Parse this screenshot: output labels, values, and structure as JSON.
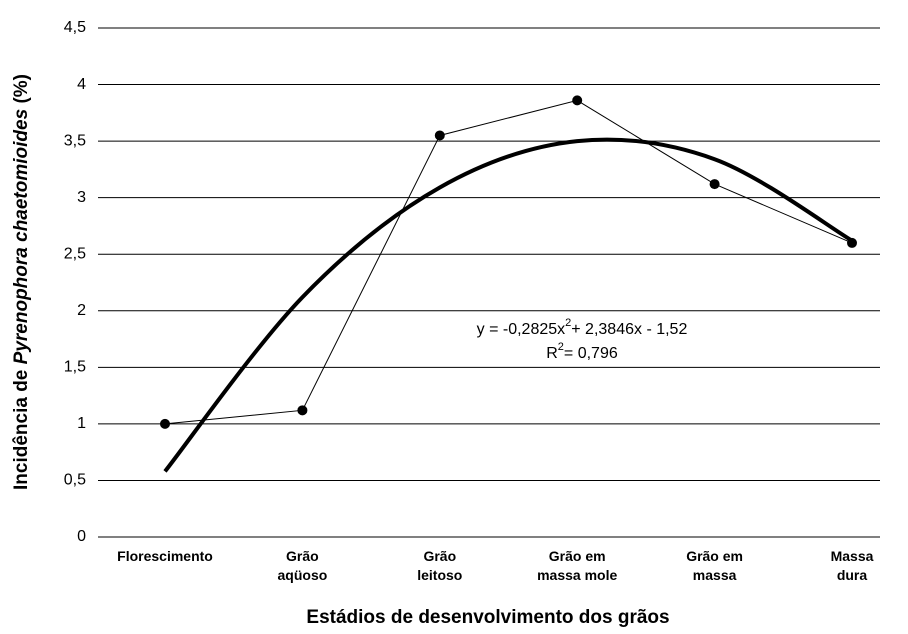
{
  "chart_data": {
    "type": "line",
    "x_label": "Estádios de desenvolvimento dos grãos",
    "y_label": [
      "Incidência de ",
      "Pyrenophora chaetomioides",
      " (%)"
    ],
    "categories": [
      [
        "Florescimento"
      ],
      [
        "Grão",
        "aqüoso"
      ],
      [
        "Grão",
        "leitoso"
      ],
      [
        "Grão em",
        "massa mole"
      ],
      [
        "Grão em",
        "massa"
      ],
      [
        "Massa",
        "dura"
      ]
    ],
    "series": [
      {
        "color": "#000000",
        "values": [
          1.0,
          1.12,
          3.55,
          3.86,
          3.12,
          2.6
        ]
      },
      {
        "color": "#000000",
        "values": [
          0.58,
          2.12,
          3.09,
          3.5,
          3.34,
          2.62
        ]
      }
    ],
    "annotations": [
      [
        "y = -0,2825x",
        "2",
        "+ 2,3846x - 1,52"
      ],
      [
        "R",
        "2",
        "= 0,796"
      ]
    ],
    "ylim": [
      0,
      4.5
    ],
    "yticks": [
      0,
      {
        "value": 0.5,
        "label": "0,5"
      },
      1,
      {
        "value": 1.5,
        "label": "1,5"
      },
      2,
      {
        "value": 2.5,
        "label": "2,5"
      },
      3,
      {
        "value": 3.5,
        "label": "3,5"
      },
      4,
      {
        "value": 4.5,
        "label": "4,5"
      }
    ],
    "grid": true
  }
}
